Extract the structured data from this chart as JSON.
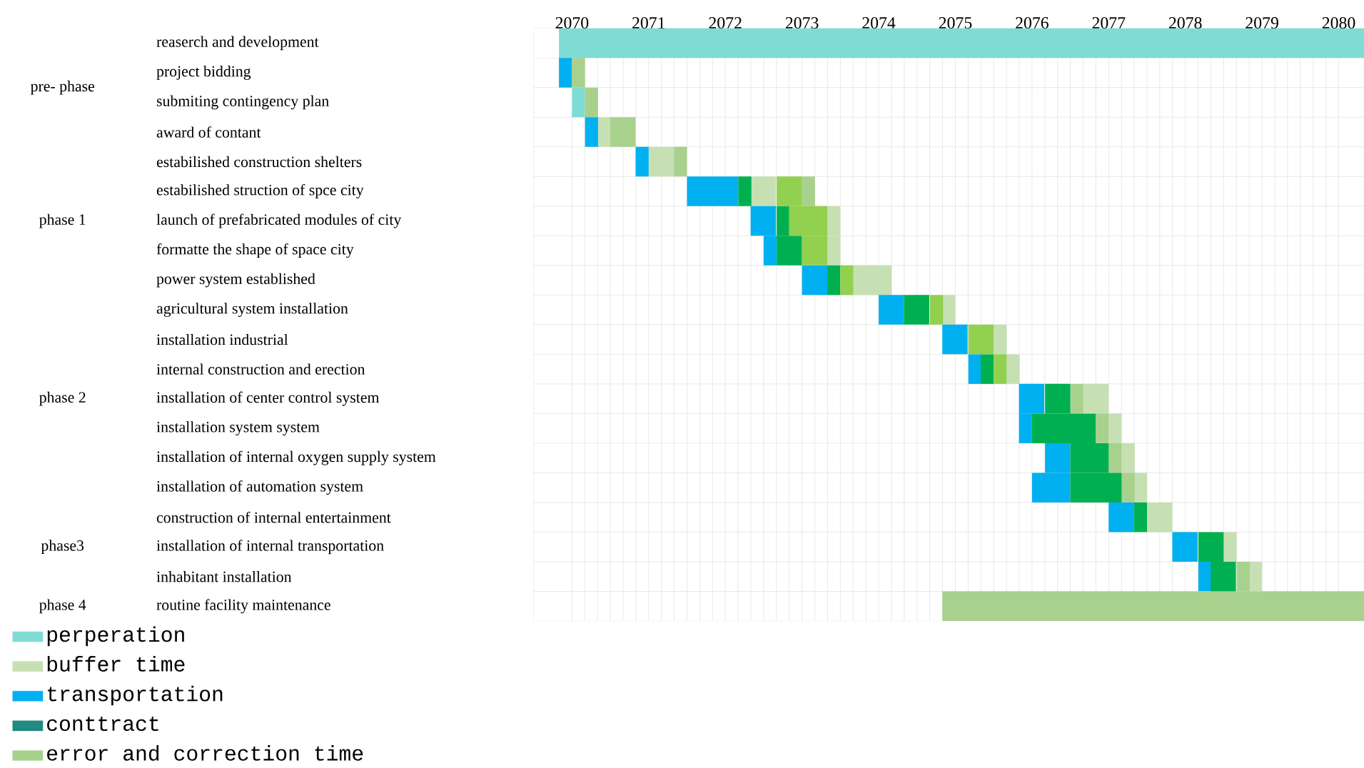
{
  "chart_data": {
    "type": "bar",
    "orientation": "horizontal",
    "categories": [
      "reaserch and development",
      "project bidding",
      "submiting contingency plan",
      "award of contant",
      "estabilished construction shelters",
      "estabilished struction of spce city",
      "launch of prefabricated modules of city",
      "formatte the shape of space city",
      "power system established",
      "agricultural system installation",
      "installation industrial",
      "internal construction and erection",
      "installation of center control system",
      "installation system system",
      "installation of internal oxygen supply system",
      "installation of automation system",
      "construction of internal entertainment",
      "installation of internal transportation",
      "inhabitant installation",
      "routine facility maintenance"
    ],
    "xlim": [
      2070,
      2080.83
    ],
    "xticks": [
      {
        "value": 2070.5,
        "label": "2070"
      },
      {
        "value": 2071.5,
        "label": "2071"
      },
      {
        "value": 2072.5,
        "label": "2072"
      },
      {
        "value": 2073.5,
        "label": "2073"
      },
      {
        "value": 2074.5,
        "label": "2074"
      },
      {
        "value": 2075.5,
        "label": "2075"
      },
      {
        "value": 2076.5,
        "label": "2076"
      },
      {
        "value": 2077.5,
        "label": "2077"
      },
      {
        "value": 2078.5,
        "label": "2078"
      },
      {
        "value": 2079.5,
        "label": "2079"
      },
      {
        "value": 2080.5,
        "label": "2080"
      }
    ],
    "grid": true,
    "legend": "bottom left",
    "series": [
      {
        "name": "perperation",
        "color": "#7fdcd4",
        "base": [
          2070.33,
          null,
          2070.5,
          null,
          null,
          null,
          null,
          null,
          null,
          null,
          null,
          null,
          null,
          null,
          null,
          null,
          null,
          null,
          null,
          null
        ],
        "values": [
          10.5,
          null,
          0.17,
          null,
          null,
          null,
          null,
          null,
          null,
          null,
          null,
          null,
          null,
          null,
          null,
          null,
          null,
          null,
          null,
          null
        ]
      },
      {
        "name": "buffer time",
        "color": "#c6e0b4",
        "base": [
          null,
          null,
          null,
          2070.83,
          2071.5,
          2072.83,
          2073.83,
          2073.83,
          2074.17,
          2075.33,
          2076,
          2076.17,
          2077.17,
          2077.5,
          2077.67,
          2077.83,
          2078,
          2079,
          2079.33,
          null
        ],
        "values": [
          null,
          null,
          null,
          0.17,
          0.33,
          0.33,
          0.17,
          0.17,
          0.5,
          0.17,
          0.17,
          0.17,
          0.33,
          0.17,
          0.17,
          0.17,
          0.33,
          0.17,
          0.17,
          null
        ]
      },
      {
        "name": "transportation",
        "color": "#00b0f0",
        "base": [
          null,
          2070.33,
          null,
          2070.67,
          2071.33,
          2072,
          2072.83,
          2073,
          2073.5,
          2074.5,
          2075.33,
          2075.67,
          2076.33,
          2076.33,
          2076.67,
          2076.5,
          2077.5,
          2078.33,
          2078.67,
          null
        ],
        "values": [
          null,
          0.17,
          null,
          0.17,
          0.17,
          0.67,
          0.33,
          0.17,
          0.33,
          0.33,
          0.33,
          0.17,
          0.33,
          0.17,
          0.33,
          0.5,
          0.33,
          0.33,
          0.17,
          null
        ]
      },
      {
        "name": "conttract",
        "color": "#228a80",
        "values": [
          null,
          null,
          null,
          null,
          null,
          null,
          null,
          null,
          null,
          null,
          null,
          null,
          null,
          null,
          null,
          null,
          null,
          null,
          null,
          null
        ]
      },
      {
        "name": "error and correction time",
        "color": "#a9d18e",
        "base": [
          null,
          2070.5,
          2070.67,
          2071,
          2071.83,
          2073.5,
          null,
          null,
          null,
          null,
          null,
          null,
          2077,
          2077.33,
          2077.5,
          2077.67,
          null,
          null,
          2079.17,
          2075.33
        ],
        "values": [
          null,
          0.17,
          0.17,
          0.33,
          0.17,
          0.17,
          null,
          null,
          null,
          null,
          null,
          null,
          0.17,
          0.17,
          0.17,
          0.17,
          null,
          null,
          0.17,
          5.5
        ]
      },
      {
        "color": "#00b050",
        "base": [
          null,
          null,
          null,
          null,
          null,
          2072.67,
          2073.17,
          2073.17,
          2073.83,
          2074.83,
          null,
          2075.83,
          2076.67,
          2076.5,
          2077,
          2077,
          2077.83,
          2078.67,
          2078.83,
          null
        ],
        "values": [
          null,
          null,
          null,
          null,
          null,
          0.17,
          0.17,
          0.33,
          0.17,
          0.33,
          null,
          0.17,
          0.33,
          0.83,
          0.5,
          0.67,
          0.17,
          0.33,
          0.33,
          null
        ]
      },
      {
        "color": "#92d050",
        "base": [
          null,
          null,
          null,
          null,
          null,
          2073.17,
          2073.33,
          2073.5,
          2074,
          2075.17,
          2075.67,
          2076,
          null,
          null,
          null,
          null,
          null,
          null,
          null,
          null
        ],
        "values": [
          null,
          null,
          null,
          null,
          null,
          0.33,
          0.5,
          0.33,
          0.17,
          0.17,
          0.33,
          0.17,
          null,
          null,
          null,
          null,
          null,
          null,
          null,
          null
        ]
      }
    ],
    "annotations": [
      "pre- phase",
      "phase 1",
      "phase 2",
      "phase3",
      "phase 4"
    ]
  }
}
